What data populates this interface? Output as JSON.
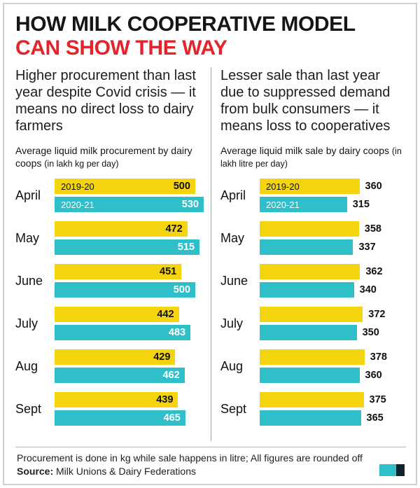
{
  "title": {
    "line1": "HOW MILK COOPERATIVE MODEL",
    "line2": "CAN SHOW THE WAY"
  },
  "colors": {
    "red_accent": "#E5232B",
    "yellow_bar": "#F4D40E",
    "cyan_bar": "#2FBFC9",
    "frame_border": "#CFCFCF"
  },
  "panels": [
    {
      "intro": "Higher procurement than last year despite Covid crisis — it means no direct loss to dairy farmers",
      "subtitle": "Average liquid milk procurement by dairy coops",
      "subtitle_note": "(in lakh kg per day)"
    },
    {
      "intro": "Lesser sale than last year due to suppressed demand from bulk consumers — it means loss to cooperatives",
      "subtitle": "Average liquid milk sale by dairy coops",
      "subtitle_note": "(in lakh litre per day)"
    }
  ],
  "chart_data": [
    {
      "type": "bar",
      "title": "Average liquid milk procurement by dairy coops (in lakh kg per day)",
      "categories": [
        "April",
        "May",
        "June",
        "July",
        "Aug",
        "Sept"
      ],
      "series": [
        {
          "name": "2019-20",
          "color": "#F4D40E",
          "label_color": "#111111",
          "values": [
            500,
            472,
            451,
            442,
            429,
            439
          ]
        },
        {
          "name": "2020-21",
          "color": "#2FBFC9",
          "label_color": "#FFFFFF",
          "values": [
            530,
            515,
            500,
            483,
            462,
            465
          ]
        }
      ],
      "xlim": [
        0,
        530
      ],
      "value_position": "inside",
      "track_pct": 100,
      "legend_position": "inside-first-bars",
      "grid": false
    },
    {
      "type": "bar",
      "title": "Average liquid milk sale by dairy coops (in lakh litre per day)",
      "categories": [
        "April",
        "May",
        "June",
        "July",
        "Aug",
        "Sept"
      ],
      "series": [
        {
          "name": "2019-20",
          "color": "#F4D40E",
          "label_color": "#111111",
          "values": [
            360,
            358,
            362,
            372,
            378,
            375
          ]
        },
        {
          "name": "2020-21",
          "color": "#2FBFC9",
          "label_color": "#FFFFFF",
          "values": [
            315,
            337,
            340,
            350,
            360,
            365
          ]
        }
      ],
      "xlim": [
        0,
        380
      ],
      "value_position": "outside",
      "track_pct": 72,
      "legend_position": "inside-first-bars",
      "grid": false
    }
  ],
  "footer": {
    "note": "Procurement is done in kg while sale happens in litre; All figures are rounded off",
    "source_label": "Source:",
    "source_text": "Milk Unions & Dairy Federations"
  }
}
